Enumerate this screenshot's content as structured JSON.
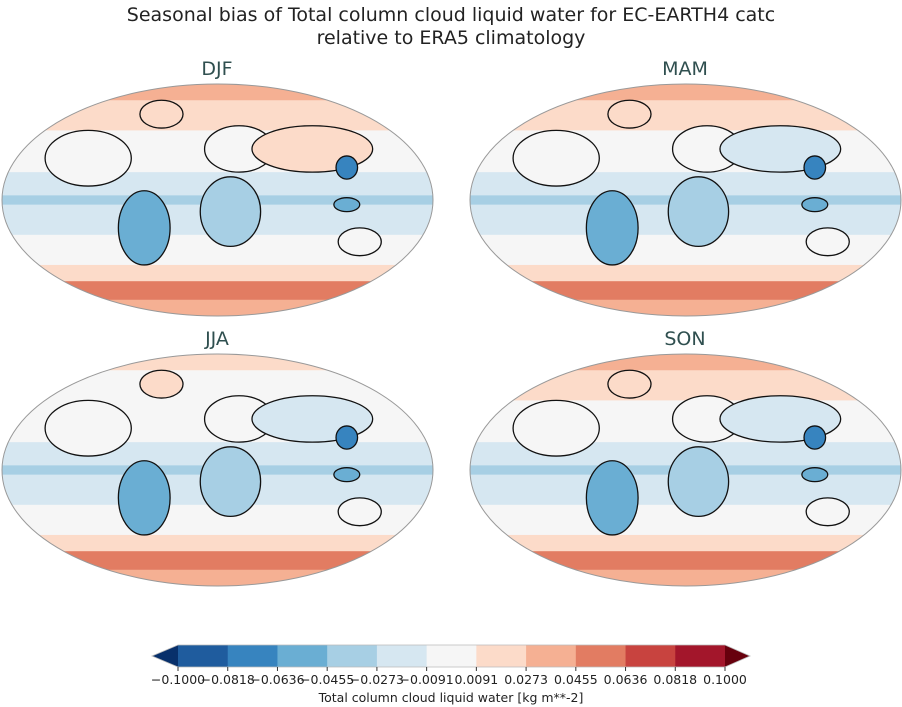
{
  "figure": {
    "title_line1": "Seasonal bias of Total column cloud liquid water for EC-EARTH4 catc",
    "title_line2": "relative to ERA5 climatology"
  },
  "panels": [
    {
      "title": "DJF"
    },
    {
      "title": "MAM"
    },
    {
      "title": "JJA"
    },
    {
      "title": "SON"
    }
  ],
  "colorbar": {
    "label": "Total column cloud liquid water [kg m**-2]",
    "ticks": [
      "−0.1000",
      "−0.0818",
      "−0.0636",
      "−0.0455",
      "−0.0273",
      "−0.0091",
      "0.0091",
      "0.0273",
      "0.0455",
      "0.0636",
      "0.0818",
      "0.1000"
    ],
    "colors": [
      "#1f5c9e",
      "#3784bf",
      "#6aaed3",
      "#a7cfe4",
      "#d6e7f1",
      "#f6f6f6",
      "#fcdbc9",
      "#f5b093",
      "#e27c62",
      "#c8433f",
      "#a3162b"
    ],
    "under_color": "#08306b",
    "over_color": "#67000d",
    "extend": "both"
  },
  "chart_data": {
    "type": "map",
    "projection": "Robinson",
    "variable": "Total column cloud liquid water",
    "units": "kg m**-2",
    "vmin": -0.1,
    "vmax": 0.1,
    "levels": [
      -0.1,
      -0.0818,
      -0.0636,
      -0.0455,
      -0.0273,
      -0.0091,
      0.0091,
      0.0273,
      0.0455,
      0.0636,
      0.0818,
      0.1
    ],
    "panels": [
      "DJF",
      "MAM",
      "JJA",
      "SON"
    ]
  }
}
